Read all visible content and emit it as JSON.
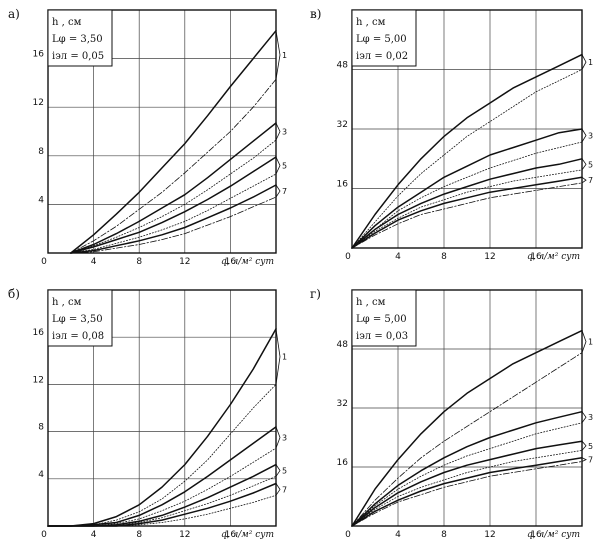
{
  "chart_data": [
    {
      "id": "a",
      "panel_label": "а)",
      "type": "line",
      "info": {
        "ylabel": "h , см",
        "param1": "Lφ = 3,50",
        "param2": "iэл = 0,05"
      },
      "xlabel": "q, л/м² сут",
      "x_ticks": [
        "0",
        "4",
        "8",
        "12",
        "16"
      ],
      "y_ticks": [
        "4",
        "8",
        "12",
        "16"
      ],
      "xlim": [
        0,
        20
      ],
      "ylim": [
        0,
        20
      ],
      "grid": true,
      "series": [
        {
          "name": "1",
          "style": "solid",
          "x": [
            2,
            4,
            6,
            8,
            10,
            12,
            14,
            16,
            18,
            20
          ],
          "y": [
            0,
            1.5,
            3.2,
            5.0,
            7.0,
            9.0,
            11.3,
            13.7,
            16.0,
            18.3
          ]
        },
        {
          "name": "",
          "style": "dashdot",
          "x": [
            2,
            4,
            6,
            8,
            10,
            12,
            14,
            16,
            18,
            20
          ],
          "y": [
            0,
            1.0,
            2.2,
            3.6,
            5.0,
            6.6,
            8.3,
            10.0,
            12.0,
            14.3
          ]
        },
        {
          "name": "3",
          "style": "solid",
          "x": [
            2,
            4,
            6,
            8,
            10,
            12,
            14,
            16,
            18,
            20
          ],
          "y": [
            0,
            0.7,
            1.6,
            2.6,
            3.7,
            4.8,
            6.2,
            7.7,
            9.2,
            10.7
          ]
        },
        {
          "name": "",
          "style": "dotted",
          "x": [
            2,
            4,
            6,
            8,
            10,
            12,
            14,
            16,
            18,
            20
          ],
          "y": [
            0,
            0.6,
            1.3,
            2.1,
            3.0,
            4.0,
            5.2,
            6.5,
            7.8,
            9.3
          ]
        },
        {
          "name": "5",
          "style": "solid",
          "x": [
            2,
            4,
            6,
            8,
            10,
            12,
            14,
            16,
            18,
            20
          ],
          "y": [
            0,
            0.5,
            1.1,
            1.7,
            2.5,
            3.4,
            4.4,
            5.5,
            6.7,
            7.9
          ]
        },
        {
          "name": "",
          "style": "dotted",
          "x": [
            2,
            4,
            6,
            8,
            10,
            12,
            14,
            16,
            18,
            20
          ],
          "y": [
            0,
            0.3,
            0.8,
            1.3,
            1.9,
            2.6,
            3.5,
            4.5,
            5.5,
            6.5
          ]
        },
        {
          "name": "7",
          "style": "solid",
          "x": [
            2,
            4,
            6,
            8,
            10,
            12,
            14,
            16,
            18,
            20
          ],
          "y": [
            0,
            0.2,
            0.6,
            1.0,
            1.5,
            2.1,
            2.9,
            3.7,
            4.6,
            5.6
          ]
        },
        {
          "name": "",
          "style": "dashdot",
          "x": [
            2,
            4,
            6,
            8,
            10,
            12,
            14,
            16,
            18,
            20
          ],
          "y": [
            0,
            0.1,
            0.4,
            0.7,
            1.1,
            1.6,
            2.3,
            3.0,
            3.8,
            4.6
          ]
        }
      ]
    },
    {
      "id": "v",
      "panel_label": "в)",
      "type": "line",
      "info": {
        "ylabel": "h , см",
        "param1": "Lφ = 5,00",
        "param2": "iэл = 0,02"
      },
      "xlabel": "q, л/м² сут",
      "x_ticks": [
        "0",
        "4",
        "8",
        "12",
        "16"
      ],
      "y_ticks": [
        "16",
        "32",
        "48"
      ],
      "xlim": [
        0,
        20
      ],
      "ylim": [
        0,
        64
      ],
      "grid": true,
      "series": [
        {
          "name": "1",
          "style": "solid",
          "x": [
            0,
            2,
            4,
            6,
            8,
            10,
            12,
            14,
            16,
            18,
            20
          ],
          "y": [
            0,
            9,
            17,
            24,
            30,
            35,
            39,
            43,
            46,
            49,
            52
          ]
        },
        {
          "name": "",
          "style": "dotted",
          "x": [
            0,
            2,
            4,
            6,
            8,
            10,
            12,
            14,
            16,
            18,
            20
          ],
          "y": [
            0,
            7,
            14,
            20,
            25,
            30,
            34,
            38,
            42,
            45,
            48
          ]
        },
        {
          "name": "3",
          "style": "solid",
          "x": [
            0,
            2,
            4,
            6,
            8,
            10,
            12,
            14,
            16,
            18,
            20
          ],
          "y": [
            0,
            6,
            11,
            15,
            19,
            22,
            25,
            27,
            29,
            31,
            32
          ]
        },
        {
          "name": "",
          "style": "dotted",
          "x": [
            0,
            2,
            4,
            6,
            8,
            10,
            12,
            14,
            16,
            18,
            20
          ],
          "y": [
            0,
            5,
            10,
            13.5,
            16.5,
            19,
            21.5,
            23.5,
            25.5,
            27,
            28.5
          ]
        },
        {
          "name": "5",
          "style": "solid",
          "x": [
            0,
            2,
            4,
            6,
            8,
            10,
            12,
            14,
            16,
            18,
            20
          ],
          "y": [
            0,
            5,
            9,
            12,
            14.5,
            16.5,
            18.5,
            20,
            21.5,
            22.5,
            24
          ]
        },
        {
          "name": "",
          "style": "dotted",
          "x": [
            0,
            2,
            4,
            6,
            8,
            10,
            12,
            14,
            16,
            18,
            20
          ],
          "y": [
            0,
            4.5,
            8,
            11,
            13,
            15,
            16.5,
            18,
            19,
            20,
            21
          ]
        },
        {
          "name": "7",
          "style": "solid",
          "x": [
            0,
            2,
            4,
            6,
            8,
            10,
            12,
            14,
            16,
            18,
            20
          ],
          "y": [
            0,
            4,
            7.5,
            10,
            12,
            13.5,
            15,
            16,
            17,
            18,
            19
          ]
        },
        {
          "name": "",
          "style": "dashdot",
          "x": [
            0,
            2,
            4,
            6,
            8,
            10,
            12,
            14,
            16,
            18,
            20
          ],
          "y": [
            0,
            3.5,
            6.5,
            9,
            10.5,
            12,
            13.5,
            14.5,
            15.5,
            16.5,
            17.5
          ]
        }
      ]
    },
    {
      "id": "b",
      "panel_label": "б)",
      "type": "line",
      "info": {
        "ylabel": "h , см",
        "param1": "Lφ = 3,50",
        "param2": "iэл = 0,08"
      },
      "xlabel": "q, л/м² сут",
      "x_ticks": [
        "0",
        "4",
        "8",
        "12",
        "16"
      ],
      "y_ticks": [
        "4",
        "8",
        "12",
        "16"
      ],
      "xlim": [
        0,
        20
      ],
      "ylim": [
        0,
        20
      ],
      "grid": true,
      "series": [
        {
          "name": "1",
          "style": "solid",
          "x": [
            0,
            2,
            4,
            6,
            8,
            10,
            12,
            14,
            16,
            18,
            20
          ],
          "y": [
            0,
            0,
            0.2,
            0.8,
            1.8,
            3.3,
            5.2,
            7.6,
            10.3,
            13.3,
            16.7
          ]
        },
        {
          "name": "",
          "style": "dotted",
          "x": [
            0,
            2,
            4,
            6,
            8,
            10,
            12,
            14,
            16,
            18,
            20
          ],
          "y": [
            0,
            0,
            0.1,
            0.5,
            1.2,
            2.3,
            3.8,
            5.6,
            7.8,
            10.0,
            12.0
          ]
        },
        {
          "name": "3",
          "style": "solid",
          "x": [
            0,
            2,
            4,
            6,
            8,
            10,
            12,
            14,
            16,
            18,
            20
          ],
          "y": [
            0,
            0,
            0.1,
            0.3,
            0.9,
            1.8,
            2.9,
            4.2,
            5.6,
            7.0,
            8.4
          ]
        },
        {
          "name": "",
          "style": "dotted",
          "x": [
            0,
            2,
            4,
            6,
            8,
            10,
            12,
            14,
            16,
            18,
            20
          ],
          "y": [
            0,
            0,
            0,
            0.2,
            0.6,
            1.3,
            2.1,
            3.1,
            4.2,
            5.4,
            6.6
          ]
        },
        {
          "name": "5",
          "style": "solid",
          "x": [
            0,
            2,
            4,
            6,
            8,
            10,
            12,
            14,
            16,
            18,
            20
          ],
          "y": [
            0,
            0,
            0,
            0.1,
            0.4,
            0.9,
            1.6,
            2.4,
            3.3,
            4.2,
            5.2
          ]
        },
        {
          "name": "",
          "style": "dotted",
          "x": [
            0,
            2,
            4,
            6,
            8,
            10,
            12,
            14,
            16,
            18,
            20
          ],
          "y": [
            0,
            0,
            0,
            0.1,
            0.3,
            0.7,
            1.3,
            1.9,
            2.6,
            3.4,
            4.2
          ]
        },
        {
          "name": "7",
          "style": "solid",
          "x": [
            0,
            2,
            4,
            6,
            8,
            10,
            12,
            14,
            16,
            18,
            20
          ],
          "y": [
            0,
            0,
            0,
            0,
            0.2,
            0.5,
            1.0,
            1.5,
            2.1,
            2.8,
            3.6
          ]
        },
        {
          "name": "",
          "style": "dotted",
          "x": [
            0,
            2,
            4,
            6,
            8,
            10,
            12,
            14,
            16,
            18,
            20
          ],
          "y": [
            0,
            0,
            0,
            0,
            0.1,
            0.3,
            0.6,
            1.0,
            1.5,
            2.0,
            2.6
          ]
        }
      ]
    },
    {
      "id": "g",
      "panel_label": "г)",
      "type": "line",
      "info": {
        "ylabel": "h , см",
        "param1": "Lφ = 5,00",
        "param2": "iэл = 0,03"
      },
      "xlabel": "q, л/м² сут",
      "x_ticks": [
        "0",
        "4",
        "8",
        "12",
        "16"
      ],
      "y_ticks": [
        "16",
        "32",
        "48"
      ],
      "xlim": [
        0,
        20
      ],
      "ylim": [
        0,
        64
      ],
      "grid": true,
      "series": [
        {
          "name": "1",
          "style": "solid",
          "x": [
            0,
            2,
            4,
            6,
            8,
            10,
            12,
            14,
            16,
            18,
            20
          ],
          "y": [
            0,
            10,
            18,
            25,
            31,
            36,
            40,
            44,
            47,
            50,
            53
          ]
        },
        {
          "name": "",
          "style": "dashdot",
          "x": [
            0,
            2,
            4,
            6,
            8,
            10,
            12,
            14,
            16,
            18,
            20
          ],
          "y": [
            0,
            7,
            13,
            18.5,
            23,
            27,
            31,
            35,
            39,
            43,
            47
          ]
        },
        {
          "name": "3",
          "style": "solid",
          "x": [
            0,
            2,
            4,
            6,
            8,
            10,
            12,
            14,
            16,
            18,
            20
          ],
          "y": [
            0,
            6,
            11,
            15,
            18.5,
            21.5,
            24,
            26,
            28,
            29.5,
            31
          ]
        },
        {
          "name": "",
          "style": "dotted",
          "x": [
            0,
            2,
            4,
            6,
            8,
            10,
            12,
            14,
            16,
            18,
            20
          ],
          "y": [
            0,
            5.5,
            10,
            13.5,
            16.5,
            19,
            21,
            23,
            25,
            26.5,
            28
          ]
        },
        {
          "name": "5",
          "style": "solid",
          "x": [
            0,
            2,
            4,
            6,
            8,
            10,
            12,
            14,
            16,
            18,
            20
          ],
          "y": [
            0,
            5,
            9,
            12,
            14.5,
            16.5,
            18,
            19.5,
            21,
            22,
            23
          ]
        },
        {
          "name": "",
          "style": "dotted",
          "x": [
            0,
            2,
            4,
            6,
            8,
            10,
            12,
            14,
            16,
            18,
            20
          ],
          "y": [
            0,
            4.5,
            8,
            10.5,
            12.5,
            14.5,
            16,
            17.5,
            18.5,
            19.5,
            20.5
          ]
        },
        {
          "name": "7",
          "style": "solid",
          "x": [
            0,
            2,
            4,
            6,
            8,
            10,
            12,
            14,
            16,
            18,
            20
          ],
          "y": [
            0,
            4,
            7,
            9.5,
            11.5,
            13,
            14.5,
            15.5,
            16.5,
            17.5,
            18.5
          ]
        },
        {
          "name": "",
          "style": "dashdot",
          "x": [
            0,
            2,
            4,
            6,
            8,
            10,
            12,
            14,
            16,
            18,
            20
          ],
          "y": [
            0,
            3.5,
            6.5,
            8.5,
            10.5,
            12,
            13.5,
            14.5,
            15.5,
            16.5,
            17.5
          ]
        }
      ]
    }
  ]
}
